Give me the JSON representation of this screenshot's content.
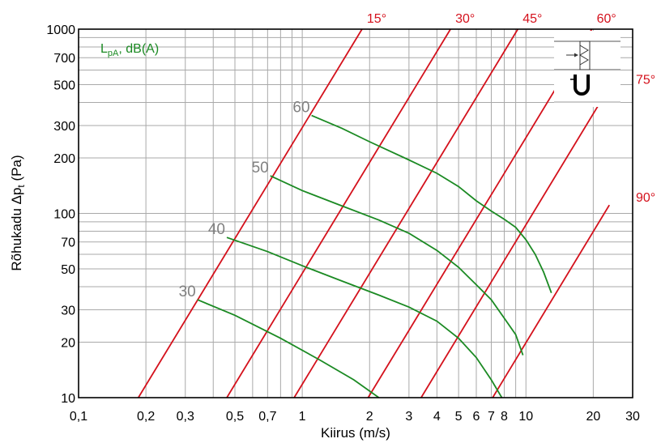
{
  "chart_data": {
    "type": "line",
    "xlabel": "Kiirus (m/s)",
    "ylabel_parts": {
      "main": "Rõhukadu ",
      "delta": "Δp",
      "sub": "t",
      "unit": " (Pa)"
    },
    "xscale": "log",
    "yscale": "log",
    "xlim": [
      0.1,
      30
    ],
    "ylim": [
      10,
      1000
    ],
    "grid": true,
    "x_ticks": [
      {
        "value": 0.1,
        "label": "0,1"
      },
      {
        "value": 0.2,
        "label": "0,2"
      },
      {
        "value": 0.3,
        "label": "0,3"
      },
      {
        "value": 0.5,
        "label": "0,5"
      },
      {
        "value": 0.7,
        "label": "0,7"
      },
      {
        "value": 1,
        "label": "1"
      },
      {
        "value": 2,
        "label": "2"
      },
      {
        "value": 3,
        "label": "3"
      },
      {
        "value": 4,
        "label": "4"
      },
      {
        "value": 5,
        "label": "5"
      },
      {
        "value": 6,
        "label": "6"
      },
      {
        "value": 7,
        "label": "7"
      },
      {
        "value": 8,
        "label": "8"
      },
      {
        "value": 10,
        "label": "10"
      },
      {
        "value": 20,
        "label": "20"
      },
      {
        "value": 30,
        "label": "30"
      }
    ],
    "y_ticks": [
      {
        "value": 10,
        "label": "10"
      },
      {
        "value": 20,
        "label": "20"
      },
      {
        "value": 30,
        "label": "30"
      },
      {
        "value": 50,
        "label": "50"
      },
      {
        "value": 70,
        "label": "70"
      },
      {
        "value": 100,
        "label": "100"
      },
      {
        "value": 200,
        "label": "200"
      },
      {
        "value": 300,
        "label": "300"
      },
      {
        "value": 500,
        "label": "500"
      },
      {
        "value": 700,
        "label": "700"
      },
      {
        "value": 1000,
        "label": "1000"
      }
    ],
    "grid_x": [
      0.2,
      0.3,
      0.4,
      0.5,
      0.6,
      0.7,
      0.8,
      0.9,
      1,
      2,
      3,
      4,
      5,
      6,
      7,
      8,
      9,
      10,
      20
    ],
    "grid_y": [
      20,
      30,
      40,
      50,
      60,
      70,
      80,
      90,
      100,
      200,
      300,
      400,
      500,
      600,
      700,
      800,
      900
    ],
    "angle_lines": [
      {
        "label": "15°",
        "points": [
          [
            0.185,
            10
          ],
          [
            1.85,
            1000
          ]
        ]
      },
      {
        "label": "30°",
        "points": [
          [
            0.46,
            10
          ],
          [
            4.6,
            1000
          ]
        ]
      },
      {
        "label": "45°",
        "points": [
          [
            0.92,
            10
          ],
          [
            9.2,
            1000
          ]
        ]
      },
      {
        "label": "60°",
        "points": [
          [
            1.97,
            10
          ],
          [
            19.7,
            1000
          ]
        ]
      },
      {
        "label": "75°",
        "points": [
          [
            3.4,
            10
          ],
          [
            23.6,
            484
          ]
        ]
      },
      {
        "label": "90°",
        "points": [
          [
            7.1,
            10
          ],
          [
            23.6,
            111
          ]
        ]
      }
    ],
    "series": [
      {
        "name": "30",
        "points": [
          [
            0.34,
            34
          ],
          [
            0.5,
            28
          ],
          [
            0.8,
            21
          ],
          [
            1.2,
            16
          ],
          [
            1.7,
            12.5
          ],
          [
            2.2,
            10
          ]
        ]
      },
      {
        "name": "40",
        "points": [
          [
            0.46,
            74
          ],
          [
            0.7,
            62
          ],
          [
            1,
            52
          ],
          [
            1.5,
            43
          ],
          [
            2.2,
            36
          ],
          [
            3,
            31
          ],
          [
            4,
            26
          ],
          [
            5,
            21
          ],
          [
            6,
            16.5
          ],
          [
            7,
            12.5
          ],
          [
            7.8,
            10
          ]
        ]
      },
      {
        "name": "50",
        "points": [
          [
            0.72,
            160
          ],
          [
            1,
            133
          ],
          [
            1.5,
            110
          ],
          [
            2.2,
            92
          ],
          [
            3,
            78
          ],
          [
            4,
            63
          ],
          [
            5,
            51
          ],
          [
            6,
            41
          ],
          [
            7,
            34
          ],
          [
            8,
            27
          ],
          [
            9,
            22
          ],
          [
            9.7,
            17
          ]
        ]
      },
      {
        "name": "60",
        "points": [
          [
            1.1,
            340
          ],
          [
            1.5,
            290
          ],
          [
            2,
            245
          ],
          [
            3,
            195
          ],
          [
            4,
            165
          ],
          [
            5,
            140
          ],
          [
            6,
            117
          ],
          [
            7,
            103
          ],
          [
            8,
            93
          ],
          [
            9,
            84
          ],
          [
            10,
            72
          ],
          [
            11,
            60
          ],
          [
            12,
            48
          ],
          [
            13,
            37
          ]
        ]
      }
    ],
    "series_labels": [
      "30",
      "40",
      "50",
      "60"
    ],
    "legend": {
      "text": "L",
      "sub": "pA",
      "rest": ", dB(A)",
      "position": "top-left"
    }
  },
  "colors": {
    "angle": "#d4111c",
    "series": "#1b8a23",
    "grid": "#a9a9a9",
    "frame": "#000000",
    "db_label": "#808080"
  },
  "icons": [
    "duct-diffuser-icon",
    "u-tube-manometer-icon"
  ]
}
